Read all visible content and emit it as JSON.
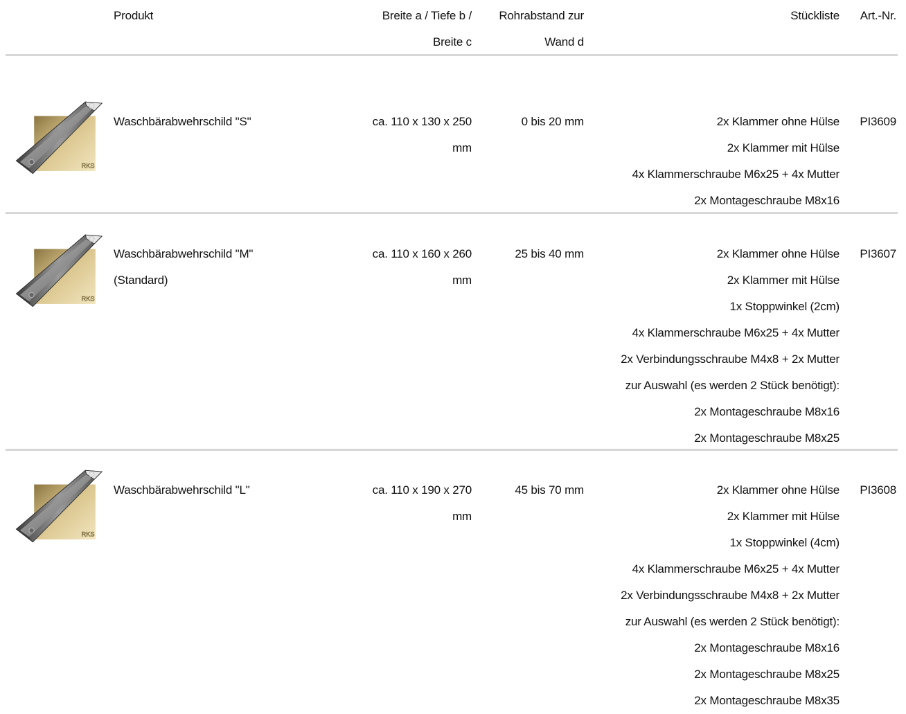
{
  "header": {
    "product": "Produkt",
    "size_line1": "Breite a / Tiefe b /",
    "size_line2": "Breite c",
    "distance_line1": "Rohrabstand zur",
    "distance_line2": "Wand d",
    "parts_list": "Stückliste",
    "article_no": "Art.-Nr."
  },
  "products": [
    {
      "image_icon": "raccoon-shield-product-image",
      "name_line1": "Waschbärabwehrschild \"S\"",
      "name_line2": "",
      "size_line1": "ca. 110 x 130 x 250",
      "size_line2": "mm",
      "distance": "0 bis 20 mm",
      "parts": [
        "2x Klammer ohne Hülse",
        "2x Klammer mit Hülse",
        "4x Klammerschraube M6x25 + 4x Mutter",
        "2x Montageschraube M8x16"
      ],
      "article": "PI3609"
    },
    {
      "image_icon": "raccoon-shield-product-image",
      "name_line1": "Waschbärabwehrschild \"M\"",
      "name_line2": "(Standard)",
      "size_line1": "ca. 110 x 160 x 260",
      "size_line2": "mm",
      "distance": "25 bis 40 mm",
      "parts": [
        "2x Klammer ohne Hülse",
        "2x Klammer mit Hülse",
        "1x Stoppwinkel (2cm)",
        "4x Klammerschraube M6x25 + 4x Mutter",
        "2x Verbindungsschraube M4x8 + 2x Mutter",
        "zur Auswahl (es werden 2 Stück benötigt):",
        "2x Montageschraube M8x16",
        "2x Montageschraube M8x25"
      ],
      "article": "PI3607"
    },
    {
      "image_icon": "raccoon-shield-product-image",
      "name_line1": "Waschbärabwehrschild \"L\"",
      "name_line2": "",
      "size_line1": "ca. 110 x 190 x 270",
      "size_line2": "mm",
      "distance": "45 bis 70 mm",
      "parts": [
        "2x Klammer ohne Hülse",
        "2x Klammer mit Hülse",
        "1x Stoppwinkel (4cm)",
        "4x Klammerschraube M6x25 + 4x Mutter",
        "2x Verbindungsschraube M4x8 + 2x Mutter",
        "zur Auswahl (es werden 2 Stück benötigt):",
        "2x Montageschraube M8x16",
        "2x Montageschraube M8x25",
        "2x Montageschraube M8x35"
      ],
      "article": "PI3608"
    }
  ]
}
